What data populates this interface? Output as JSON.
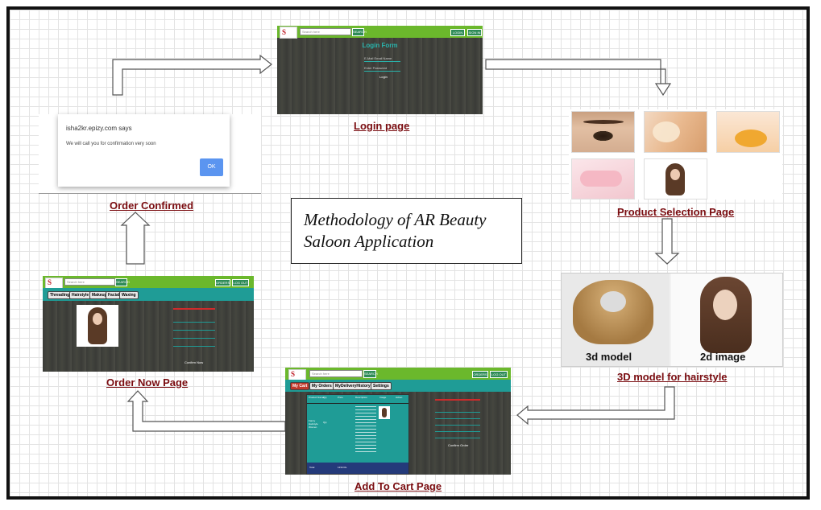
{
  "title": {
    "line1": "Methodology of AR Beauty",
    "line2": "Saloon Application"
  },
  "captions": {
    "login": "Login page",
    "product": "Product Selection Page",
    "model3d": "3D model for hairstyle",
    "cart": "Add To Cart Page",
    "order_now": "Order Now Page",
    "confirmed": "Order Confirmed"
  },
  "login_screen": {
    "search_placeholder": "Search here",
    "search_button": "SEARCH",
    "btn_login": "LOGIN",
    "btn_signup": "SIGN IN",
    "form_title": "Login Form",
    "field1": "E-Mail Email Name",
    "field2": "Enter Password",
    "submit": "Login"
  },
  "dialog": {
    "site": "isha2kr.epizy.com says",
    "message": "We will call you for confirmation very soon",
    "ok": "OK"
  },
  "order_now_screen": {
    "search_placeholder": "Search here",
    "search_button": "SEARCH",
    "btn1": "ORDERS",
    "btn2": "LOG OUT",
    "tabs": [
      "Threading",
      "Hairstyle",
      "Makeup",
      "Facial",
      "Waxing"
    ],
    "confirm": "Confirm Now"
  },
  "cart_screen": {
    "search_placeholder": "Search here",
    "search_button": "SEARCH",
    "btn1": "ORDERS",
    "btn2": "LOG OUT",
    "tabs": [
      "My Cart",
      "My Orders",
      "MyDeliveryHistory",
      "Settings"
    ],
    "headers": [
      "Product Name",
      "Qty",
      "Price",
      "Description",
      "Image",
      "Action"
    ],
    "row_name": "Fancy Hairstyle Women",
    "row_qty": "Qty",
    "total_label": "Total",
    "total_value": "1234 Rs.",
    "confirm": "Confirm Order"
  },
  "model_labels": {
    "left": "3d model",
    "right": "2d image"
  },
  "colors": {
    "caption": "#7a0c10",
    "green_bar": "#6bb82c",
    "teal": "#1f9c96",
    "dialog_ok": "#5b95f0"
  }
}
